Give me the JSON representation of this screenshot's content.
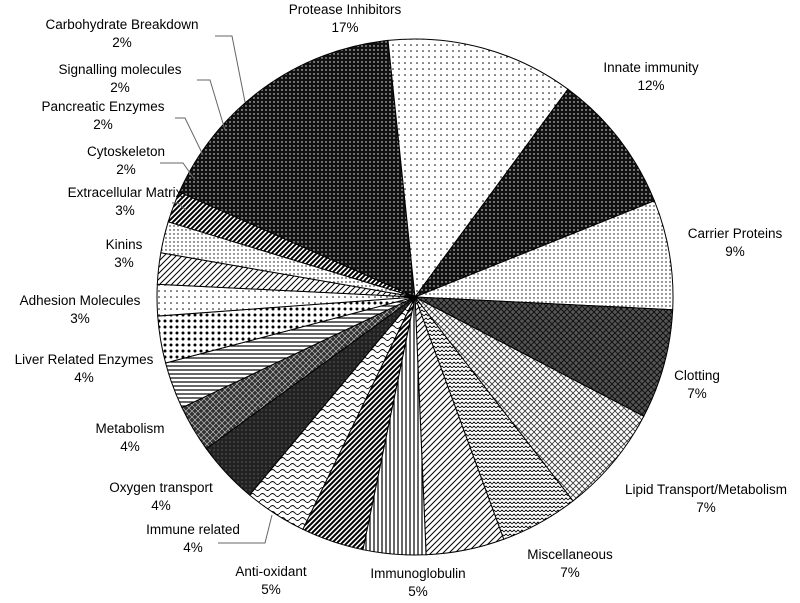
{
  "chart_data": {
    "type": "pie",
    "title": "",
    "slices": [
      {
        "label": "Protease Inhibitors",
        "value": 17,
        "value_label": "17%",
        "pattern": "dense-dots-dark"
      },
      {
        "label": "Innate immunity",
        "value": 12,
        "value_label": "12%",
        "pattern": "sparse-dots-light"
      },
      {
        "label": "Carrier Proteins",
        "value": 9,
        "value_label": "9%",
        "pattern": "dense-dots-dark"
      },
      {
        "label": "Clotting",
        "value": 7,
        "value_label": "7%",
        "pattern": "fine-dots-light"
      },
      {
        "label": "Lipid Transport/Metabolism",
        "value": 7,
        "value_label": "7%",
        "pattern": "dark-crosshatch"
      },
      {
        "label": "Miscellaneous",
        "value": 7,
        "value_label": "7%",
        "pattern": "light-crosshatch"
      },
      {
        "label": "Immunoglobulin",
        "value": 5,
        "value_label": "5%",
        "pattern": "zigzag-weave"
      },
      {
        "label": "Anti-oxidant",
        "value": 5,
        "value_label": "5%",
        "pattern": "diagonal-lines"
      },
      {
        "label": "Immune related",
        "value": 4,
        "value_label": "4%",
        "pattern": "vertical-lines"
      },
      {
        "label": "Oxygen transport",
        "value": 4,
        "value_label": "4%",
        "pattern": "dark-diagonal-lines"
      },
      {
        "label": "Metabolism",
        "value": 4,
        "value_label": "4%",
        "pattern": "wave-lines"
      },
      {
        "label": "Liver Related Enzymes",
        "value": 4,
        "value_label": "4%",
        "pattern": "dark-grid"
      },
      {
        "label": "Adhesion Molecules",
        "value": 3,
        "value_label": "3%",
        "pattern": "diamond-grid"
      },
      {
        "label": "Kinins",
        "value": 3,
        "value_label": "3%",
        "pattern": "horizontal-lines"
      },
      {
        "label": "Extracellular Matrix",
        "value": 3,
        "value_label": "3%",
        "pattern": "large-dots"
      },
      {
        "label": "Cytoskeleton",
        "value": 2,
        "value_label": "2%",
        "pattern": "sparse-dots-light"
      },
      {
        "label": "Pancreatic Enzymes",
        "value": 2,
        "value_label": "2%",
        "pattern": "diagonal-lines"
      },
      {
        "label": "Signalling molecules",
        "value": 2,
        "value_label": "2%",
        "pattern": "fine-dots-light"
      },
      {
        "label": "Carbohydrate Breakdown",
        "value": 2,
        "value_label": "2%",
        "pattern": "dark-diagonal-lines"
      }
    ],
    "direction": "clockwise",
    "legend": "none",
    "labels": "outside with leader lines for small slices"
  }
}
